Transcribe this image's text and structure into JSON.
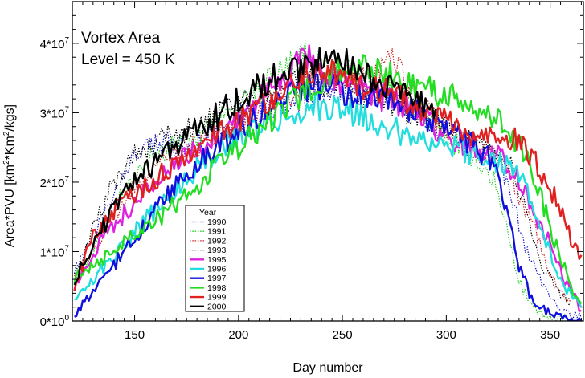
{
  "chart_data": {
    "type": "line",
    "annotations": [
      "Vortex Area",
      "Level = 450 K"
    ],
    "xlabel": "Day number",
    "ylabel": "Area*PVU [km²*Km²/kgs]",
    "xlim": [
      120,
      366
    ],
    "ylim": [
      0,
      46000000.0
    ],
    "x_ticks": [
      150,
      200,
      250,
      300,
      350
    ],
    "x_tick_labels": [
      "150",
      "200",
      "250",
      "300",
      "350"
    ],
    "y_ticks": [
      0,
      10000000.0,
      20000000.0,
      30000000.0,
      40000000.0
    ],
    "y_tick_labels": [
      {
        "base": "0*10",
        "exp": "0"
      },
      {
        "base": "1*10",
        "exp": "7"
      },
      {
        "base": "2*10",
        "exp": "7"
      },
      {
        "base": "3*10",
        "exp": "7"
      },
      {
        "base": "4*10",
        "exp": "7"
      }
    ],
    "grid": false,
    "legend": {
      "title": "Year",
      "placement": "lower-left"
    },
    "series": [
      {
        "name": "1990",
        "color": "#1010c8",
        "style": "dotted",
        "x": [
          121,
          130,
          140,
          150,
          160,
          170,
          180,
          190,
          200,
          210,
          220,
          230,
          240,
          250,
          260,
          270,
          280,
          290,
          300,
          310,
          320,
          325,
          330,
          335,
          340,
          345,
          350,
          355,
          360,
          365
        ],
        "y": [
          7000000.0,
          12000000.0,
          19000000.0,
          24000000.0,
          25000000.0,
          25500000.0,
          26000000.0,
          27500000.0,
          29000000.0,
          30000000.0,
          31000000.0,
          32000000.0,
          33000000.0,
          34000000.0,
          33500000.0,
          33000000.0,
          31000000.0,
          29000000.0,
          27000000.0,
          25500000.0,
          24000000.0,
          22500000.0,
          19000000.0,
          14000000.0,
          9000000.0,
          6000000.0,
          3500000.0,
          2000000.0,
          1000000.0,
          500000.0
        ]
      },
      {
        "name": "1991",
        "color": "#22cc22",
        "style": "dotted",
        "x": [
          121,
          130,
          140,
          150,
          160,
          170,
          180,
          190,
          200,
          210,
          220,
          230,
          240,
          250,
          260,
          270,
          280,
          290,
          300,
          310,
          320,
          325,
          330,
          335,
          340,
          345,
          350,
          355,
          360
        ],
        "y": [
          6000000.0,
          10000000.0,
          16000000.0,
          21000000.0,
          24000000.0,
          25500000.0,
          27000000.0,
          28500000.0,
          31000000.0,
          33000000.0,
          36000000.0,
          38500000.0,
          37500000.0,
          36000000.0,
          35000000.0,
          34500000.0,
          32000000.0,
          29500000.0,
          27000000.0,
          24000000.0,
          22000000.0,
          19000000.0,
          12000000.0,
          6000000.0,
          2500000.0,
          1000000.0,
          500000.0,
          200000.0,
          0.0
        ]
      },
      {
        "name": "1992",
        "color": "#c82020",
        "style": "dotted",
        "x": [
          121,
          130,
          140,
          150,
          160,
          170,
          180,
          190,
          200,
          210,
          220,
          230,
          240,
          250,
          260,
          270,
          275,
          280,
          290,
          300,
          310,
          320,
          330,
          335,
          340,
          345,
          350,
          355,
          360
        ],
        "y": [
          6000000.0,
          10000000.0,
          15000000.0,
          19000000.0,
          22000000.0,
          24000000.0,
          25000000.0,
          27000000.0,
          28500000.0,
          30000000.0,
          32000000.0,
          34000000.0,
          35000000.0,
          35500000.0,
          35000000.0,
          36500000.0,
          38000000.0,
          34000000.0,
          30000000.0,
          27500000.0,
          25500000.0,
          24000000.0,
          23000000.0,
          17000000.0,
          15000000.0,
          11000000.0,
          7000000.0,
          4000000.0,
          2500000.0
        ]
      },
      {
        "name": "1993",
        "color": "#000000",
        "style": "dotted",
        "x": [
          121,
          130,
          140,
          150,
          160,
          170,
          180,
          190,
          200,
          210,
          220,
          230,
          240,
          250,
          260,
          270,
          280,
          290,
          300,
          310,
          320,
          330,
          335,
          340,
          345,
          350,
          355,
          360
        ],
        "y": [
          7000000.0,
          13000000.0,
          20000000.0,
          24000000.0,
          25500000.0,
          27000000.0,
          28000000.0,
          29500000.0,
          31000000.0,
          33000000.0,
          34000000.0,
          35000000.0,
          34500000.0,
          33500000.0,
          32500000.0,
          32000000.0,
          30500000.0,
          29500000.0,
          28000000.0,
          26000000.0,
          25000000.0,
          23000000.0,
          19000000.0,
          14000000.0,
          9000000.0,
          6000000.0,
          4000000.0,
          2500000.0
        ]
      },
      {
        "name": "1995",
        "color": "#dd22dd",
        "style": "solid",
        "bold": true,
        "x": [
          121,
          130,
          140,
          150,
          160,
          170,
          180,
          190,
          200,
          210,
          220,
          230,
          235,
          240,
          250,
          260,
          270,
          280,
          290,
          300,
          310,
          320,
          325,
          330,
          335,
          340,
          345,
          350,
          355,
          360,
          365
        ],
        "y": [
          5000000.0,
          10000000.0,
          14000000.0,
          17000000.0,
          20000000.0,
          22500000.0,
          24500000.0,
          26500000.0,
          29000000.0,
          32000000.0,
          34500000.0,
          37500000.0,
          38000000.0,
          36000000.0,
          34000000.0,
          33500000.0,
          32000000.0,
          31000000.0,
          29000000.0,
          27000000.0,
          25000000.0,
          24500000.0,
          24000000.0,
          22500000.0,
          20000000.0,
          17000000.0,
          14000000.0,
          11000000.0,
          7000000.0,
          4500000.0,
          1500000.0
        ]
      },
      {
        "name": "1996",
        "color": "#22dddd",
        "style": "solid",
        "bold": true,
        "x": [
          121,
          130,
          140,
          150,
          160,
          170,
          180,
          190,
          200,
          210,
          220,
          230,
          240,
          250,
          260,
          270,
          280,
          290,
          300,
          310,
          320,
          330,
          335,
          340,
          345,
          350,
          355,
          360,
          365
        ],
        "y": [
          3000000.0,
          6000000.0,
          9500000.0,
          13000000.0,
          16000000.0,
          19000000.0,
          22000000.0,
          24500000.0,
          26500000.0,
          28000000.0,
          29500000.0,
          30500000.0,
          31000000.0,
          30500000.0,
          29500000.0,
          28000000.0,
          27000000.0,
          26500000.0,
          25500000.0,
          24500000.0,
          23500000.0,
          22500000.0,
          21000000.0,
          18000000.0,
          14000000.0,
          10000000.0,
          6000000.0,
          3500000.0,
          2000000.0
        ]
      },
      {
        "name": "1997",
        "color": "#1010dd",
        "style": "solid",
        "bold": true,
        "x": [
          121,
          130,
          140,
          150,
          160,
          170,
          180,
          190,
          200,
          210,
          220,
          230,
          240,
          250,
          260,
          270,
          280,
          290,
          300,
          310,
          320,
          325,
          330,
          335,
          340,
          345,
          350,
          355,
          360,
          365
        ],
        "y": [
          1000000.0,
          4000000.0,
          8000000.0,
          12000000.0,
          16000000.0,
          19500000.0,
          22500000.0,
          25000000.0,
          27500000.0,
          30000000.0,
          32000000.0,
          33500000.0,
          34000000.0,
          33000000.0,
          32000000.0,
          31500000.0,
          30500000.0,
          29500000.0,
          28000000.0,
          26000000.0,
          23500000.0,
          21000000.0,
          15000000.0,
          8000000.0,
          4000000.0,
          2000000.0,
          1000000.0,
          500000.0,
          200000.0,
          0.0
        ]
      },
      {
        "name": "1998",
        "color": "#22dd22",
        "style": "solid",
        "bold": true,
        "x": [
          121,
          130,
          140,
          150,
          160,
          170,
          180,
          190,
          200,
          210,
          220,
          230,
          240,
          250,
          260,
          270,
          280,
          290,
          300,
          310,
          320,
          330,
          335,
          340,
          345,
          350,
          355,
          360,
          365
        ],
        "y": [
          6000000.0,
          8000000.0,
          10000000.0,
          13000000.0,
          14500000.0,
          17000000.0,
          19000000.0,
          23000000.0,
          25000000.0,
          27500000.0,
          30000000.0,
          32500000.0,
          34500000.0,
          36500000.0,
          37000000.0,
          35500000.0,
          34500000.0,
          33500000.0,
          32500000.0,
          31000000.0,
          29500000.0,
          27500000.0,
          25500000.0,
          22500000.0,
          18500000.0,
          13500000.0,
          9000000.0,
          5000000.0,
          2500000.0
        ]
      },
      {
        "name": "1999",
        "color": "#e02020",
        "style": "solid",
        "bold": true,
        "x": [
          121,
          130,
          140,
          150,
          160,
          170,
          180,
          190,
          200,
          210,
          220,
          230,
          240,
          250,
          260,
          270,
          280,
          290,
          300,
          310,
          320,
          325,
          330,
          335,
          340,
          345,
          350,
          355,
          360,
          365
        ],
        "y": [
          5000000.0,
          12000000.0,
          16000000.0,
          18500000.0,
          20500000.0,
          22500000.0,
          25000000.0,
          27000000.0,
          29000000.0,
          31000000.0,
          33000000.0,
          35500000.0,
          36500000.0,
          35000000.0,
          34000000.0,
          33000000.0,
          31500000.0,
          30000000.0,
          28500000.0,
          27000000.0,
          26500000.0,
          27000000.0,
          26500000.0,
          25500000.0,
          24000000.0,
          22000000.0,
          19000000.0,
          16000000.0,
          12000000.0,
          9500000.0
        ]
      },
      {
        "name": "2000",
        "color": "#000000",
        "style": "solid",
        "bold": true,
        "x": [
          121,
          130,
          140,
          150,
          160,
          170,
          180,
          190,
          200,
          210,
          220,
          230,
          240,
          245,
          250,
          255,
          260,
          270,
          280,
          290,
          295
        ],
        "y": [
          6000000.0,
          11000000.0,
          16000000.0,
          20000000.0,
          23000000.0,
          25500000.0,
          27500000.0,
          29500000.0,
          32000000.0,
          34000000.0,
          35500000.0,
          36500000.0,
          37500000.0,
          38500000.0,
          38000000.0,
          36500000.0,
          35500000.0,
          34000000.0,
          32500000.0,
          31000000.0,
          30500000.0
        ]
      }
    ]
  }
}
